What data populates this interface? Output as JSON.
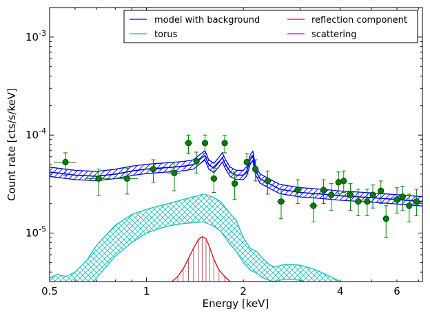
{
  "chart_data": {
    "type": "scatter",
    "xlabel": "Energy [keV]",
    "ylabel": "Count rate [cts/s/keV]",
    "xscale": "log",
    "yscale": "log",
    "xlim": [
      0.5,
      7.2
    ],
    "ylim": [
      3.2e-06,
      0.002
    ],
    "x_tick_values": [
      0.5,
      1,
      2,
      4,
      6
    ],
    "x_tick_labels": [
      "0.5",
      "1",
      "2",
      "4",
      "6"
    ],
    "y_ticks": [
      {
        "value": 1e-05,
        "mantissa": "10",
        "exponent": "-5"
      },
      {
        "value": 0.0001,
        "mantissa": "10",
        "exponent": "-4"
      },
      {
        "value": 0.001,
        "mantissa": "10",
        "exponent": "-3"
      }
    ],
    "legend": {
      "placement": "top-right",
      "columns": 2,
      "entries": [
        {
          "label": "model with background",
          "color": "#0000ff"
        },
        {
          "label": "reflection component",
          "color": "#ff0000"
        },
        {
          "label": "torus",
          "color": "#00bfbf"
        },
        {
          "label": "scattering",
          "color": "#bf00bf"
        }
      ]
    },
    "colors": {
      "model": "#0000ff",
      "torus": "#1fbdbd",
      "reflection": "#dd1111",
      "data": "#007f00"
    },
    "model": {
      "x": [
        0.5,
        0.6,
        0.7,
        0.8,
        0.9,
        1.0,
        1.1,
        1.2,
        1.3,
        1.4,
        1.48,
        1.52,
        1.56,
        1.62,
        1.68,
        1.72,
        1.76,
        1.82,
        1.9,
        2.0,
        2.05,
        2.1,
        2.14,
        2.18,
        2.25,
        2.4,
        2.6,
        3.0,
        3.5,
        4.0,
        5.0,
        6.0,
        7.2
      ],
      "y": [
        4.2e-05,
        3.9e-05,
        3.8e-05,
        4e-05,
        4.3e-05,
        4.5e-05,
        4.6e-05,
        4.7e-05,
        4.8e-05,
        5e-05,
        5.8e-05,
        6.2e-05,
        5e-05,
        4.6e-05,
        5.3e-05,
        5.9e-05,
        5e-05,
        4.2e-05,
        3.9e-05,
        3.9e-05,
        4.3e-05,
        5.6e-05,
        6.1e-05,
        4.4e-05,
        3.6e-05,
        3.2e-05,
        2.8e-05,
        2.6e-05,
        2.5e-05,
        2.4e-05,
        2.3e-05,
        2.2e-05,
        2.1e-05
      ],
      "band_low_factor": 0.9,
      "band_high_factor": 1.12
    },
    "torus": {
      "x": [
        0.5,
        0.53,
        0.56,
        0.6,
        0.65,
        0.7,
        0.8,
        0.9,
        1.0,
        1.1,
        1.2,
        1.3,
        1.4,
        1.5,
        1.6,
        1.7,
        1.8,
        1.9,
        2.0,
        2.1,
        2.2,
        2.3,
        2.4,
        2.5,
        2.7,
        3.0,
        3.3,
        3.6,
        4.0
      ],
      "upper": [
        3.5e-06,
        3.8e-06,
        3.6e-06,
        4e-06,
        5.2e-06,
        7.5e-06,
        1.2e-05,
        1.55e-05,
        1.75e-05,
        1.9e-05,
        2.05e-05,
        2.2e-05,
        2.35e-05,
        2.5e-05,
        2.35e-05,
        2.1e-05,
        1.65e-05,
        1.35e-05,
        9e-06,
        7e-06,
        6.5e-06,
        5.5e-06,
        4.8e-06,
        4.5e-06,
        4.8e-06,
        4.7e-06,
        4.3e-06,
        3.8e-06,
        3.2e-06
      ],
      "lower": [
        2e-06,
        2e-06,
        2e-06,
        2e-06,
        2.5e-06,
        3.5e-06,
        5.8e-06,
        8e-06,
        1e-05,
        1.12e-05,
        1.2e-05,
        1.25e-05,
        1.28e-05,
        1.3e-05,
        1.2e-05,
        1.05e-05,
        8e-06,
        6.5e-06,
        5e-06,
        4.2e-06,
        3.9e-06,
        3.5e-06,
        3.3e-06,
        3.2e-06,
        3.4e-06,
        3.3e-06,
        3e-06,
        2.6e-06,
        2e-06
      ]
    },
    "reflection": {
      "x": [
        1.2,
        1.25,
        1.3,
        1.35,
        1.4,
        1.45,
        1.49,
        1.53,
        1.57,
        1.62,
        1.68,
        1.75,
        1.82
      ],
      "y": [
        3.2e-06,
        3.6e-06,
        4.3e-06,
        5.5e-06,
        7e-06,
        8.6e-06,
        9.2e-06,
        8.8e-06,
        7.2e-06,
        5.4e-06,
        4.2e-06,
        3.6e-06,
        3.2e-06
      ]
    },
    "data": [
      {
        "x": 0.56,
        "y": 5.3e-05,
        "xerr": 0.045,
        "ylo": 3.9e-05,
        "yhi": 6.6e-05
      },
      {
        "x": 0.71,
        "y": 3.6e-05,
        "xerr": 0.06,
        "ylo": 2.4e-05,
        "yhi": 4.5e-05
      },
      {
        "x": 0.87,
        "y": 3.6e-05,
        "xerr": 0.07,
        "ylo": 2.5e-05,
        "yhi": 4.6e-05
      },
      {
        "x": 1.05,
        "y": 4.5e-05,
        "xerr": 0.07,
        "ylo": 3.3e-05,
        "yhi": 5.6e-05
      },
      {
        "x": 1.22,
        "y": 4.1e-05,
        "xerr": 0.06,
        "ylo": 2.7e-05,
        "yhi": 5.3e-05
      },
      {
        "x": 1.35,
        "y": 8.3e-05,
        "xerr": 0.04,
        "ylo": 6.5e-05,
        "yhi": 0.0001
      },
      {
        "x": 1.43,
        "y": 5.4e-05,
        "xerr": 0.03,
        "ylo": 4.1e-05,
        "yhi": 6.7e-05
      },
      {
        "x": 1.52,
        "y": 8.3e-05,
        "xerr": 0.035,
        "ylo": 6.5e-05,
        "yhi": 0.0001
      },
      {
        "x": 1.62,
        "y": 3.6e-05,
        "xerr": 0.04,
        "ylo": 2.6e-05,
        "yhi": 4.6e-05
      },
      {
        "x": 1.75,
        "y": 8.3e-05,
        "xerr": 0.03,
        "ylo": 6.6e-05,
        "yhi": 9.9e-05
      },
      {
        "x": 1.88,
        "y": 3.2e-05,
        "xerr": 0.04,
        "ylo": 2.2e-05,
        "yhi": 4.2e-05
      },
      {
        "x": 2.05,
        "y": 5.3e-05,
        "xerr": 0.035,
        "ylo": 4e-05,
        "yhi": 6.5e-05
      },
      {
        "x": 2.18,
        "y": 4.5e-05,
        "xerr": 0.04,
        "ylo": 3.4e-05,
        "yhi": 5.6e-05
      },
      {
        "x": 2.38,
        "y": 3.4e-05,
        "xerr": 0.05,
        "ylo": 2.5e-05,
        "yhi": 4.3e-05
      },
      {
        "x": 2.62,
        "y": 2.1e-05,
        "xerr": 0.08,
        "ylo": 1.4e-05,
        "yhi": 2.8e-05
      },
      {
        "x": 2.95,
        "y": 2.75e-05,
        "xerr": 0.09,
        "ylo": 2e-05,
        "yhi": 3.5e-05
      },
      {
        "x": 3.3,
        "y": 1.9e-05,
        "xerr": 0.1,
        "ylo": 1.3e-05,
        "yhi": 2.5e-05
      },
      {
        "x": 3.55,
        "y": 2.75e-05,
        "xerr": 0.09,
        "ylo": 2e-05,
        "yhi": 3.5e-05
      },
      {
        "x": 3.75,
        "y": 2.45e-05,
        "xerr": 0.09,
        "ylo": 1.7e-05,
        "yhi": 3.2e-05
      },
      {
        "x": 3.95,
        "y": 3.3e-05,
        "xerr": 0.07,
        "ylo": 2.5e-05,
        "yhi": 4.2e-05
      },
      {
        "x": 4.1,
        "y": 3.4e-05,
        "xerr": 0.07,
        "ylo": 2.6e-05,
        "yhi": 4.3e-05
      },
      {
        "x": 4.3,
        "y": 2.45e-05,
        "xerr": 0.1,
        "ylo": 1.7e-05,
        "yhi": 3.2e-05
      },
      {
        "x": 4.55,
        "y": 2.1e-05,
        "xerr": 0.12,
        "ylo": 1.5e-05,
        "yhi": 2.8e-05
      },
      {
        "x": 4.85,
        "y": 2.1e-05,
        "xerr": 0.13,
        "ylo": 1.5e-05,
        "yhi": 2.8e-05
      },
      {
        "x": 5.05,
        "y": 2.45e-05,
        "xerr": 0.1,
        "ylo": 1.8e-05,
        "yhi": 3.1e-05
      },
      {
        "x": 5.35,
        "y": 2.7e-05,
        "xerr": 0.1,
        "ylo": 2e-05,
        "yhi": 3.4e-05
      },
      {
        "x": 5.55,
        "y": 1.4e-05,
        "xerr": 0.12,
        "ylo": 9e-06,
        "yhi": 1.9e-05
      },
      {
        "x": 6.0,
        "y": 2.2e-05,
        "xerr": 0.16,
        "ylo": 1.6e-05,
        "yhi": 2.9e-05
      },
      {
        "x": 6.25,
        "y": 2.35e-05,
        "xerr": 0.12,
        "ylo": 1.7e-05,
        "yhi": 3e-05
      },
      {
        "x": 6.55,
        "y": 1.9e-05,
        "xerr": 0.15,
        "ylo": 1.3e-05,
        "yhi": 2.5e-05
      },
      {
        "x": 6.9,
        "y": 2.1e-05,
        "xerr": 0.2,
        "ylo": 1.5e-05,
        "yhi": 2.8e-05
      }
    ]
  }
}
